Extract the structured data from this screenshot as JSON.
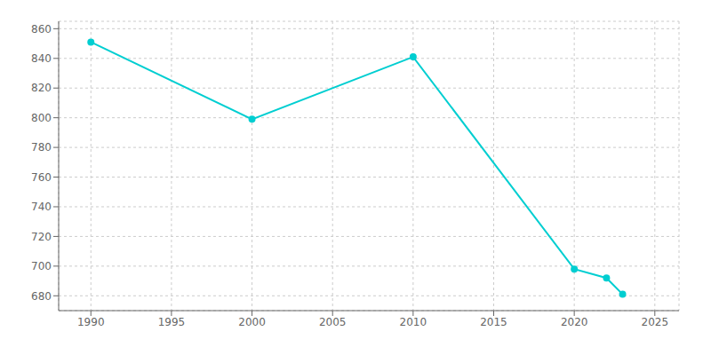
{
  "chart_data": {
    "type": "line",
    "x": [
      1990,
      2000,
      2010,
      2020,
      2022,
      2023
    ],
    "values": [
      851,
      799,
      841,
      698,
      692,
      681
    ],
    "color": "#00CED1",
    "marker": "circle",
    "xlim": [
      1988,
      2026.5
    ],
    "ylim": [
      670,
      865
    ],
    "xticks": [
      1990,
      1995,
      2000,
      2005,
      2010,
      2015,
      2020,
      2025
    ],
    "yticks": [
      680,
      700,
      720,
      740,
      760,
      780,
      800,
      820,
      840,
      860
    ],
    "grid": true
  }
}
